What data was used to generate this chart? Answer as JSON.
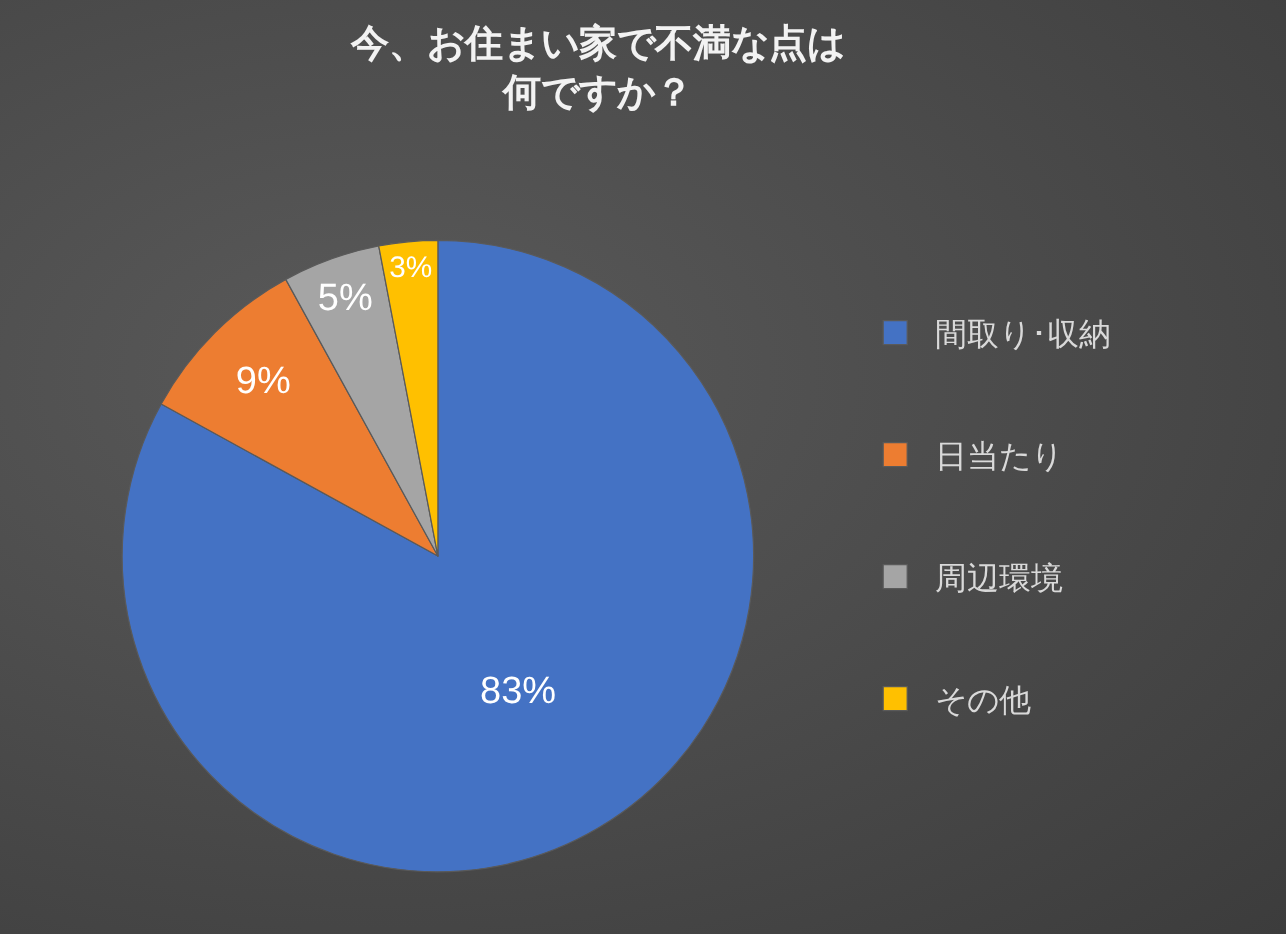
{
  "chart_data": {
    "type": "pie",
    "title": "今、お住まい家で不満な点は何ですか？",
    "categories": [
      "間取り･収納",
      "日当たり",
      "周辺環境",
      "その他"
    ],
    "values": [
      83,
      9,
      5,
      3
    ],
    "colors": [
      "#4472c4",
      "#ed7d31",
      "#a5a5a5",
      "#ffc000"
    ],
    "value_labels": [
      "83%",
      "9%",
      "5%",
      "3%"
    ],
    "legend": "right"
  }
}
